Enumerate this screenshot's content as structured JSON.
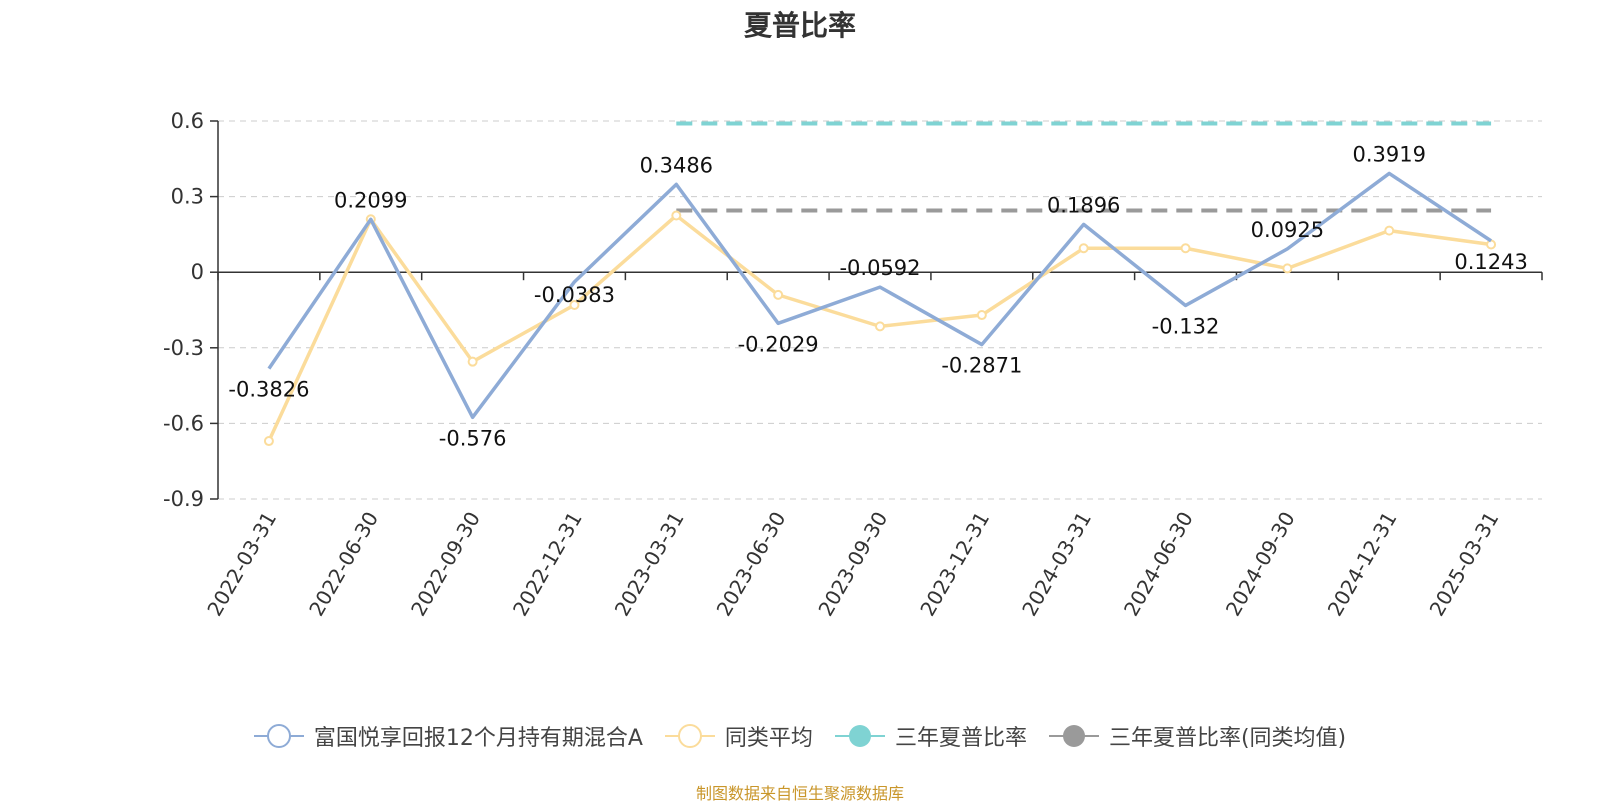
{
  "chart_data": {
    "type": "line",
    "title": "夏普比率",
    "categories": [
      "2022-03-31",
      "2022-06-30",
      "2022-09-30",
      "2022-12-31",
      "2023-03-31",
      "2023-06-30",
      "2023-09-30",
      "2023-12-31",
      "2024-03-31",
      "2024-06-30",
      "2024-09-30",
      "2024-12-31",
      "2025-03-31"
    ],
    "ylim": [
      -0.9,
      0.6
    ],
    "yticks": [
      0.6,
      0.3,
      0,
      -0.3,
      -0.6,
      -0.9
    ],
    "ytick_labels": [
      "0.6",
      "0.3",
      "0",
      "-0.3",
      "-0.6",
      "-0.9"
    ],
    "grid": true,
    "legend_position": "bottom",
    "series": [
      {
        "name": "富国悦享回报12个月持有期混合A",
        "color": "#8eabd6",
        "values": [
          -0.3826,
          0.2099,
          -0.576,
          -0.0383,
          0.3486,
          -0.2029,
          -0.0592,
          -0.2871,
          0.1896,
          -0.132,
          0.0925,
          0.3919,
          0.1243
        ],
        "labels": [
          "-0.3826",
          "0.2099",
          "-0.576",
          "-0.0383",
          "0.3486",
          "-0.2029",
          "-0.0592",
          "-0.2871",
          "0.1896",
          "-0.132",
          "0.0925",
          "0.3919",
          "0.1243"
        ]
      },
      {
        "name": "同类平均",
        "color": "#fbdc9b",
        "values": [
          -0.67,
          0.21,
          -0.355,
          -0.13,
          0.225,
          -0.09,
          -0.215,
          -0.17,
          0.095,
          0.095,
          0.015,
          0.165,
          0.11
        ]
      },
      {
        "name": "三年夏普比率",
        "color": "#7fd3d3",
        "style": "dashed",
        "x_range": [
          "2023-03-31",
          "2025-03-31"
        ],
        "value": 0.59
      },
      {
        "name": "三年夏普比率(同类均值)",
        "color": "#9a9a9a",
        "style": "dashed",
        "x_range": [
          "2023-03-31",
          "2025-03-31"
        ],
        "value": 0.245
      }
    ]
  },
  "source_note": "制图数据来自恒生聚源数据库"
}
